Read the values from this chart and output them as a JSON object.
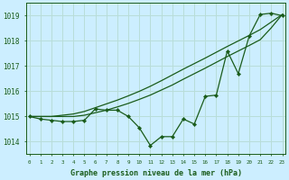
{
  "title": "Graphe pression niveau de la mer (hPa)",
  "background_color": "#cceeff",
  "grid_color": "#b8ddd8",
  "line_color": "#1a5c1a",
  "hours": [
    0,
    1,
    2,
    3,
    4,
    5,
    6,
    7,
    8,
    9,
    10,
    11,
    12,
    13,
    14,
    15,
    16,
    17,
    18,
    19,
    20,
    21,
    22,
    23
  ],
  "pressure": [
    1015.0,
    1014.9,
    1014.85,
    1014.8,
    1014.8,
    1014.85,
    1015.3,
    1015.25,
    1015.25,
    1015.0,
    1014.55,
    1013.85,
    1014.2,
    1014.2,
    1014.9,
    1014.7,
    1015.8,
    1015.85,
    1017.6,
    1016.7,
    1018.2,
    1019.05,
    1019.1,
    1019.0
  ],
  "trend1": [
    1015.0,
    1015.0,
    1015.0,
    1015.0,
    1015.0,
    1015.05,
    1015.15,
    1015.25,
    1015.38,
    1015.52,
    1015.68,
    1015.85,
    1016.05,
    1016.25,
    1016.48,
    1016.7,
    1016.92,
    1017.15,
    1017.38,
    1017.6,
    1017.82,
    1018.05,
    1018.52,
    1019.05
  ],
  "trend2": [
    1015.0,
    1015.0,
    1015.0,
    1015.05,
    1015.1,
    1015.2,
    1015.35,
    1015.5,
    1015.65,
    1015.82,
    1016.0,
    1016.2,
    1016.42,
    1016.65,
    1016.88,
    1017.1,
    1017.32,
    1017.55,
    1017.78,
    1018.0,
    1018.22,
    1018.45,
    1018.75,
    1019.05
  ],
  "ylim_min": 1013.5,
  "ylim_max": 1019.5,
  "yticks": [
    1014,
    1015,
    1016,
    1017,
    1018,
    1019
  ],
  "xlim_min": -0.3,
  "xlim_max": 23.3
}
